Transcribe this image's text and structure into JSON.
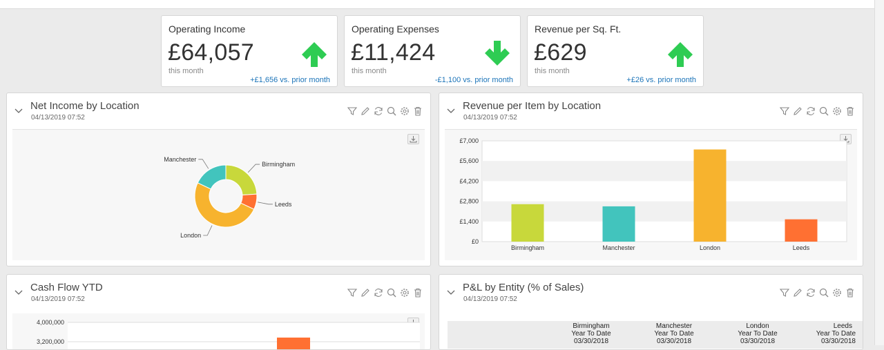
{
  "kpis": [
    {
      "title": "Operating Income",
      "value": "£64,057",
      "sub": "this month",
      "change": "+£1,656 vs. prior month",
      "direction": "up",
      "color": "#2ecc53"
    },
    {
      "title": "Operating Expenses",
      "value": "£11,424",
      "sub": "this month",
      "change": "-£1,100 vs. prior month",
      "direction": "down",
      "color": "#2ecc53"
    },
    {
      "title": "Revenue per Sq. Ft.",
      "value": "£629",
      "sub": "this month",
      "change": "+£26 vs. prior month",
      "direction": "up",
      "color": "#2ecc53"
    }
  ],
  "panels": {
    "net_income": {
      "title": "Net Income by Location",
      "date": "04/13/2019 07:52"
    },
    "revenue_item": {
      "title": "Revenue per Item by Location",
      "date": "04/13/2019 07:52"
    },
    "cash_flow": {
      "title": "Cash Flow YTD",
      "date": "04/13/2019 07:52"
    },
    "pl_entity": {
      "title": "P&L by Entity (% of Sales)",
      "date": "04/13/2019 07:52"
    }
  },
  "toolbar_icons": [
    "filter-icon",
    "edit-icon",
    "refresh-icon",
    "search-icon",
    "gear-icon",
    "trash-icon"
  ],
  "chart_data": [
    {
      "type": "pie",
      "title": "Net Income by Location",
      "categories": [
        "Birmingham",
        "Leeds",
        "London",
        "Manchester"
      ],
      "values": [
        24,
        8,
        50,
        18
      ],
      "colors": [
        "#c8d83b",
        "#ff7032",
        "#f7b32e",
        "#42c4bd"
      ],
      "donut": true
    },
    {
      "type": "bar",
      "title": "Revenue per Item by Location",
      "categories": [
        "Birmingham",
        "Manchester",
        "London",
        "Leeds"
      ],
      "values": [
        2600,
        2450,
        6400,
        1550
      ],
      "colors": [
        "#c8d83b",
        "#42c4bd",
        "#f7b32e",
        "#ff7032"
      ],
      "ylim": [
        0,
        7000
      ],
      "yticks": [
        "£0",
        "£1,400",
        "£2,800",
        "£4,200",
        "£5,600",
        "£7,000"
      ],
      "grid": true
    },
    {
      "type": "bar",
      "title": "Cash Flow YTD",
      "yticks_visible": [
        "4,000,000",
        "3,200,000"
      ],
      "ylim_visible": [
        3200000,
        4000000
      ]
    }
  ],
  "pl_table": {
    "columns": [
      {
        "entity": "Birmingham",
        "period": "Year To Date",
        "date": "03/30/2018"
      },
      {
        "entity": "Manchester",
        "period": "Year To Date",
        "date": "03/30/2018"
      },
      {
        "entity": "London",
        "period": "Year To Date",
        "date": "03/30/2018"
      },
      {
        "entity": "Leeds",
        "period": "Year To Date",
        "date": "03/30/2018"
      }
    ]
  }
}
